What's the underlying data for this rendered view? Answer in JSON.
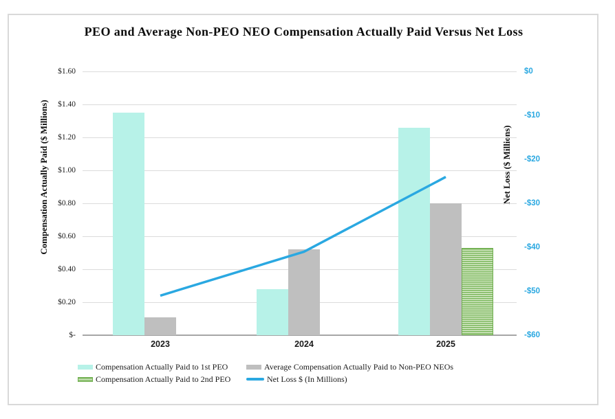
{
  "chart": {
    "title": "PEO and Average Non-PEO NEO Compensation Actually Paid Versus Net Loss",
    "left_axis": {
      "title": "Compensation Actually Paid ($ Millions)",
      "tick_labels": [
        "$1.60",
        "$1.40",
        "$1.20",
        "$1.00",
        "$0.80",
        "$0.60",
        "$0.40",
        "$0.20",
        "$-"
      ]
    },
    "right_axis": {
      "title": "Net Loss ($ Millions)",
      "tick_labels": [
        "$0",
        "-$10",
        "-$20",
        "-$30",
        "-$40",
        "-$50",
        "-$60"
      ],
      "label_color": "#2AA8E1"
    },
    "x_axis": {
      "tick_labels": [
        "2023",
        "2024",
        "2025"
      ]
    }
  },
  "chart_data": {
    "type": "combo",
    "title": "PEO and Average Non-PEO NEO Compensation Actually Paid Versus Net Loss",
    "categories": [
      "2023",
      "2024",
      "2025"
    ],
    "left_ylabel": "Compensation Actually Paid ($ Millions)",
    "right_ylabel": "Net Loss ($ Millions)",
    "left_ylim": [
      0,
      1.6
    ],
    "right_ylim": [
      -60,
      0
    ],
    "grid": true,
    "legend_position": "bottom",
    "series": [
      {
        "name": "Compensation Actually Paid to 1st PEO",
        "type": "bar",
        "axis": "left",
        "color": "#B7F2E8",
        "values": [
          1.35,
          0.28,
          1.26
        ]
      },
      {
        "name": "Average Compensation Actually Paid to Non-PEO NEOs",
        "type": "bar",
        "axis": "left",
        "color": "#BFBFBF",
        "values": [
          0.11,
          0.52,
          0.8
        ]
      },
      {
        "name": "Compensation Actually Paid to 2nd PEO",
        "type": "bar",
        "axis": "left",
        "color": "#79B65A",
        "pattern": "horizontal-stripes",
        "pattern_color": "#D9EBCB",
        "border_color": "#6FAE4E",
        "values": [
          null,
          null,
          0.53
        ]
      },
      {
        "name": "Net Loss $ (In Millions)",
        "type": "line",
        "axis": "right",
        "color": "#2AA8E1",
        "values": [
          -51,
          -41,
          -24
        ]
      }
    ]
  },
  "colors": {
    "gridline": "#DBDBDB",
    "axis_line": "#A6A6A6",
    "frame_border": "#D9D9D9"
  }
}
